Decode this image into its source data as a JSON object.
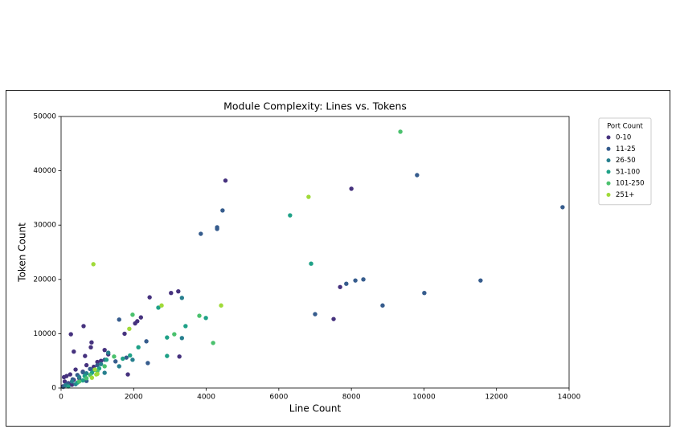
{
  "chart_data": {
    "type": "scatter",
    "title": "Module Complexity: Lines vs. Tokens",
    "x_label": "Line Count",
    "y_label": "Token Count",
    "legend_title": "Port Count",
    "legend": "upper right outside",
    "xlim": [
      0,
      14000
    ],
    "xticks": [
      0,
      2000,
      4000,
      6000,
      8000,
      10000,
      12000,
      14000
    ],
    "ylim": [
      0,
      50000
    ],
    "yticks": [
      0,
      10000,
      20000,
      30000,
      40000,
      50000
    ],
    "series": [
      {
        "name": "0-10",
        "color": "#46327e",
        "x": [
          4530,
          8000,
          7690,
          7510,
          2440,
          3030,
          3230,
          2200,
          2100,
          2040,
          1750,
          270,
          620,
          350,
          840,
          820,
          660,
          3260,
          1840,
          50,
          100,
          150,
          200,
          250,
          300,
          400,
          500,
          600,
          700,
          900,
          1100,
          1300,
          350,
          80,
          1200,
          1000
        ],
        "values": [
          38200,
          36700,
          18600,
          12700,
          16700,
          17500,
          17800,
          13000,
          12300,
          11900,
          10000,
          9900,
          11400,
          6700,
          8400,
          7500,
          5900,
          5800,
          2500,
          300,
          1200,
          2200,
          900,
          2500,
          600,
          3400,
          1800,
          3000,
          4200,
          3900,
          5000,
          6200,
          1500,
          2000,
          7000,
          4800
        ]
      },
      {
        "name": "11-25",
        "color": "#365c8d",
        "x": [
          9810,
          13820,
          8110,
          8330,
          7860,
          7000,
          8860,
          10010,
          11560,
          2350,
          2390,
          4300,
          4300,
          4450,
          3850,
          1600,
          60,
          180,
          320,
          450,
          600,
          800,
          1000,
          1200,
          1500,
          1800,
          700
        ],
        "values": [
          39200,
          33300,
          19800,
          20000,
          19200,
          13600,
          15200,
          17500,
          19800,
          8600,
          4600,
          29300,
          29600,
          32700,
          28400,
          12600,
          200,
          800,
          1600,
          2400,
          2900,
          3500,
          4200,
          5200,
          4900,
          5600,
          1300
        ]
      },
      {
        "name": "26-50",
        "color": "#277f8e",
        "x": [
          3330,
          3330,
          1970,
          120,
          300,
          500,
          700,
          900,
          1100,
          1300,
          1600,
          1200,
          400
        ],
        "values": [
          16600,
          9200,
          5200,
          500,
          1200,
          2000,
          2700,
          3300,
          4400,
          6500,
          4000,
          2800,
          700
        ]
      },
      {
        "name": "51-100",
        "color": "#1fa187",
        "x": [
          6310,
          6890,
          2680,
          3990,
          3430,
          2920,
          2920,
          2130,
          200,
          450,
          650,
          850,
          1050,
          1250,
          1700,
          1900,
          600
        ],
        "values": [
          31800,
          22900,
          14800,
          12900,
          11400,
          9300,
          5900,
          7500,
          300,
          1000,
          2200,
          2800,
          3600,
          5200,
          5400,
          6000,
          1400
        ]
      },
      {
        "name": "101-250",
        "color": "#4ac16d",
        "x": [
          9350,
          1970,
          3120,
          3810,
          4190,
          1460,
          500,
          800,
          1000,
          1200,
          700
        ],
        "values": [
          47200,
          13500,
          9900,
          13300,
          8300,
          5800,
          1200,
          2400,
          3100,
          4000,
          1800
        ]
      },
      {
        "name": "251+",
        "color": "#a0da39",
        "x": [
          6820,
          890,
          2770,
          4410,
          1880,
          970,
          930,
          850,
          1000
        ],
        "values": [
          35200,
          22800,
          15200,
          15200,
          10900,
          2500,
          3400,
          1900,
          2600
        ]
      }
    ]
  }
}
